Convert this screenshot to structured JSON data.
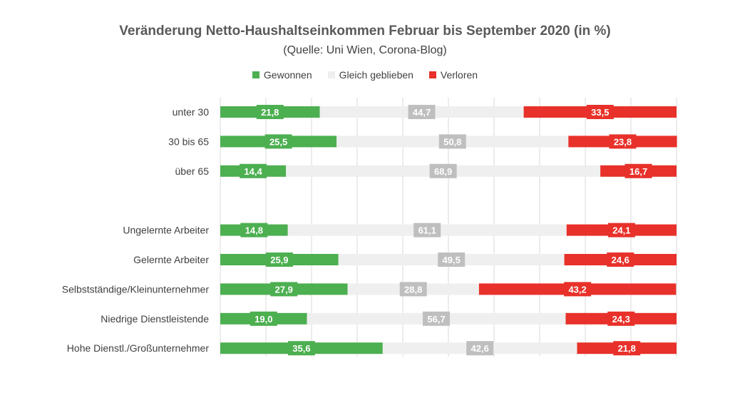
{
  "chart_data": {
    "type": "bar",
    "orientation": "horizontal",
    "stacked": true,
    "title": "Veränderung Netto-Haushaltseinkommen Februar bis September 2020  (in %)",
    "subtitle": "(Quelle: Uni Wien, Corona-Blog)",
    "categories": [
      "unter 30",
      "30 bis 65",
      "über 65",
      "",
      "Ungelernte Arbeiter",
      "Gelernte Arbeiter",
      "Selbstständige/Kleinunternehmer",
      "Niedrige Dienstleistende",
      "Hohe Dienstl./Großunternehmer"
    ],
    "series": [
      {
        "name": "Gewonnen",
        "color": "#4caf50",
        "values": [
          21.8,
          25.5,
          14.4,
          null,
          14.8,
          25.9,
          27.9,
          19.0,
          35.6
        ],
        "labels": [
          "21,8",
          "25,5",
          "14,4",
          "",
          "14,8",
          "25,9",
          "27,9",
          "19,0",
          "35,6"
        ]
      },
      {
        "name": "Gleich geblieben",
        "color": "#efefef",
        "label_bg": "#bfbfbf",
        "values": [
          44.7,
          50.8,
          68.9,
          null,
          61.1,
          49.5,
          28.8,
          56.7,
          42.6
        ],
        "labels": [
          "44,7",
          "50,8",
          "68,9",
          "",
          "61,1",
          "49,5",
          "28,8",
          "56,7",
          "42,6"
        ]
      },
      {
        "name": "Verloren",
        "color": "#e8312a",
        "values": [
          33.5,
          23.8,
          16.7,
          null,
          24.1,
          24.6,
          43.2,
          24.3,
          21.8
        ],
        "labels": [
          "33,5",
          "23,8",
          "16,7",
          "",
          "24,1",
          "24,6",
          "43,2",
          "24,3",
          "21,8"
        ]
      }
    ],
    "xlim": [
      0,
      100
    ],
    "grid": true,
    "legend_position": "top"
  }
}
